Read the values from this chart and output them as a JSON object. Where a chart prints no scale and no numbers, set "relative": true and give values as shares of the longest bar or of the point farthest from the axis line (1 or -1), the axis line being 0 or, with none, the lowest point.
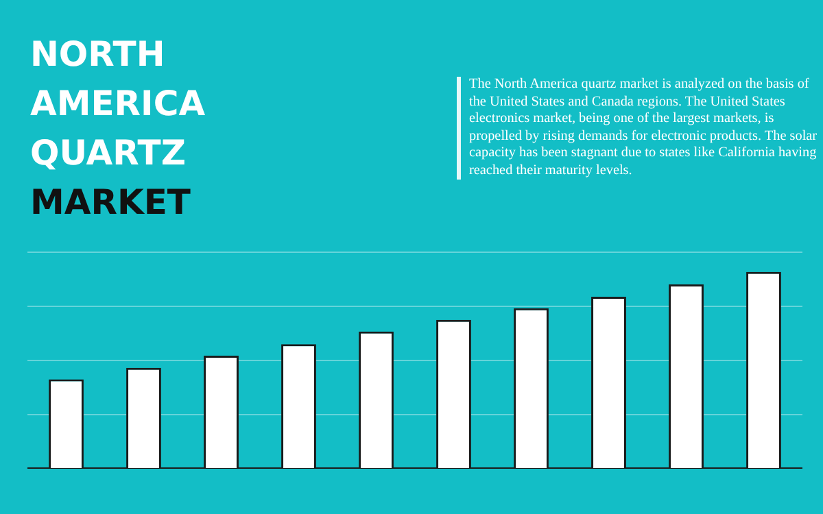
{
  "chart_data": {
    "type": "bar",
    "title": "NORTH AMERICA QUARTZ MARKET",
    "subtitle": "The North America quartz market is analyzed on the basis of the United States and Canada regions. The United States electronics market, being one of the largest markets, is propelled by rising demands for electronic products. The solar capacity has been stagnant due to states like California having reached their maturity levels.",
    "categories": [
      null,
      null,
      null,
      null,
      null,
      null,
      null,
      null,
      null,
      null
    ],
    "values": [
      0.454,
      0.513,
      0.574,
      0.633,
      0.697,
      0.756,
      0.815,
      0.874,
      0.936,
      1
    ],
    "color": "#ffffff",
    "relative": true,
    "grid": "y"
  }
}
